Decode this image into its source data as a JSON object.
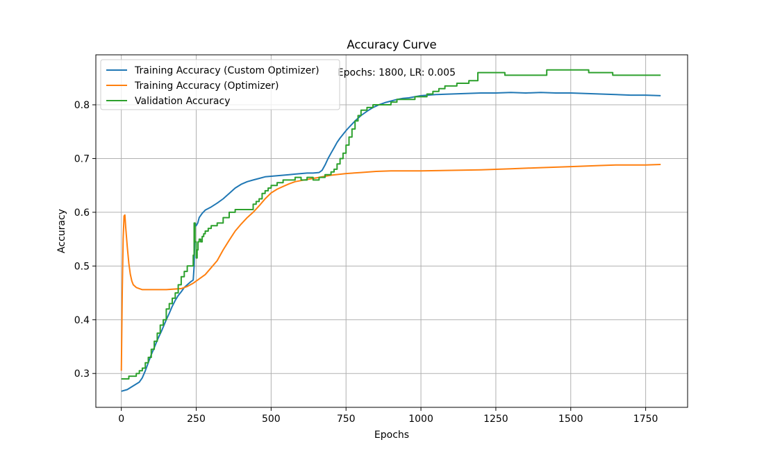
{
  "chart_data": {
    "type": "line",
    "title": "Accuracy Curve",
    "xlabel": "Epochs",
    "ylabel": "Accuracy",
    "annotation": "Epochs: 1800, LR: 0.005",
    "xlim": [
      -85,
      1890
    ],
    "ylim": [
      0.237,
      0.893
    ],
    "xticks": [
      0,
      250,
      500,
      750,
      1000,
      1250,
      1500,
      1750
    ],
    "yticks": [
      0.3,
      0.4,
      0.5,
      0.6,
      0.7,
      0.8
    ],
    "xtick_labels": [
      "0",
      "250",
      "500",
      "750",
      "1000",
      "1250",
      "1500",
      "1750"
    ],
    "ytick_labels": [
      "0.3",
      "0.4",
      "0.5",
      "0.6",
      "0.7",
      "0.8"
    ],
    "grid": true,
    "legend_position": "top-left",
    "series": [
      {
        "name": "Training Accuracy (Custom Optimizer)",
        "color": "#1f77b4",
        "style": "line",
        "x": [
          0,
          20,
          40,
          60,
          70,
          80,
          90,
          100,
          110,
          120,
          135,
          150,
          160,
          170,
          180,
          190,
          200,
          210,
          220,
          230,
          240,
          243,
          246,
          250,
          255,
          260,
          270,
          280,
          300,
          320,
          340,
          360,
          380,
          400,
          420,
          440,
          460,
          480,
          500,
          520,
          540,
          560,
          580,
          600,
          620,
          640,
          660,
          670,
          680,
          690,
          700,
          710,
          720,
          730,
          740,
          750,
          760,
          770,
          780,
          790,
          800,
          820,
          840,
          860,
          880,
          900,
          920,
          940,
          960,
          980,
          1000,
          1050,
          1100,
          1150,
          1200,
          1250,
          1300,
          1350,
          1400,
          1450,
          1500,
          1550,
          1600,
          1650,
          1700,
          1750,
          1800
        ],
        "y": [
          0.267,
          0.27,
          0.277,
          0.284,
          0.292,
          0.305,
          0.32,
          0.335,
          0.348,
          0.362,
          0.38,
          0.4,
          0.412,
          0.425,
          0.436,
          0.445,
          0.452,
          0.46,
          0.465,
          0.47,
          0.474,
          0.5,
          0.58,
          0.575,
          0.58,
          0.59,
          0.598,
          0.604,
          0.61,
          0.617,
          0.625,
          0.635,
          0.645,
          0.652,
          0.657,
          0.66,
          0.663,
          0.666,
          0.667,
          0.668,
          0.669,
          0.67,
          0.671,
          0.672,
          0.673,
          0.673,
          0.674,
          0.678,
          0.688,
          0.7,
          0.71,
          0.72,
          0.73,
          0.738,
          0.745,
          0.752,
          0.758,
          0.764,
          0.77,
          0.775,
          0.78,
          0.788,
          0.795,
          0.8,
          0.804,
          0.807,
          0.81,
          0.812,
          0.813,
          0.815,
          0.817,
          0.819,
          0.82,
          0.821,
          0.822,
          0.822,
          0.823,
          0.822,
          0.823,
          0.822,
          0.822,
          0.821,
          0.82,
          0.819,
          0.818,
          0.818,
          0.817
        ]
      },
      {
        "name": "Training Accuracy (Optimizer)",
        "color": "#ff7f0e",
        "style": "line",
        "x": [
          0,
          3,
          6,
          9,
          12,
          15,
          20,
          25,
          30,
          35,
          40,
          50,
          60,
          70,
          80,
          100,
          150,
          200,
          220,
          240,
          260,
          280,
          300,
          320,
          340,
          360,
          380,
          400,
          420,
          440,
          460,
          480,
          500,
          520,
          540,
          560,
          580,
          600,
          620,
          640,
          660,
          680,
          700,
          750,
          800,
          850,
          900,
          950,
          1000,
          1100,
          1200,
          1300,
          1400,
          1500,
          1600,
          1650,
          1700,
          1750,
          1800
        ],
        "y": [
          0.305,
          0.45,
          0.55,
          0.593,
          0.595,
          0.57,
          0.535,
          0.505,
          0.485,
          0.472,
          0.465,
          0.46,
          0.458,
          0.456,
          0.456,
          0.456,
          0.456,
          0.458,
          0.462,
          0.468,
          0.476,
          0.484,
          0.497,
          0.51,
          0.53,
          0.548,
          0.565,
          0.578,
          0.59,
          0.6,
          0.612,
          0.625,
          0.636,
          0.643,
          0.648,
          0.653,
          0.657,
          0.659,
          0.661,
          0.663,
          0.665,
          0.667,
          0.669,
          0.672,
          0.674,
          0.676,
          0.677,
          0.677,
          0.677,
          0.678,
          0.679,
          0.681,
          0.683,
          0.685,
          0.687,
          0.688,
          0.688,
          0.688,
          0.689
        ]
      },
      {
        "name": "Validation Accuracy",
        "color": "#2ca02c",
        "style": "step",
        "x": [
          0,
          15,
          25,
          35,
          50,
          60,
          70,
          80,
          90,
          100,
          110,
          120,
          130,
          140,
          150,
          160,
          170,
          180,
          190,
          200,
          210,
          220,
          230,
          240,
          243,
          246,
          250,
          253,
          256,
          260,
          265,
          270,
          275,
          280,
          290,
          300,
          320,
          340,
          360,
          380,
          400,
          420,
          440,
          450,
          460,
          470,
          480,
          490,
          500,
          520,
          540,
          560,
          580,
          600,
          620,
          640,
          660,
          680,
          700,
          710,
          720,
          730,
          740,
          750,
          760,
          770,
          780,
          790,
          800,
          820,
          840,
          860,
          880,
          900,
          920,
          940,
          960,
          980,
          1000,
          1020,
          1040,
          1060,
          1080,
          1100,
          1120,
          1140,
          1160,
          1180,
          1190,
          1200,
          1280,
          1420,
          1560,
          1640,
          1800
        ],
        "y": [
          0.29,
          0.29,
          0.295,
          0.295,
          0.3,
          0.305,
          0.31,
          0.32,
          0.33,
          0.345,
          0.36,
          0.375,
          0.39,
          0.4,
          0.42,
          0.43,
          0.44,
          0.45,
          0.465,
          0.48,
          0.49,
          0.5,
          0.5,
          0.52,
          0.58,
          0.545,
          0.515,
          0.53,
          0.545,
          0.55,
          0.545,
          0.555,
          0.56,
          0.565,
          0.57,
          0.575,
          0.58,
          0.59,
          0.6,
          0.605,
          0.605,
          0.605,
          0.615,
          0.62,
          0.625,
          0.635,
          0.64,
          0.645,
          0.65,
          0.655,
          0.66,
          0.66,
          0.665,
          0.66,
          0.665,
          0.66,
          0.665,
          0.67,
          0.675,
          0.68,
          0.69,
          0.7,
          0.71,
          0.725,
          0.74,
          0.755,
          0.77,
          0.78,
          0.79,
          0.795,
          0.8,
          0.8,
          0.8,
          0.805,
          0.81,
          0.81,
          0.81,
          0.815,
          0.815,
          0.82,
          0.825,
          0.83,
          0.835,
          0.835,
          0.84,
          0.84,
          0.845,
          0.845,
          0.86,
          0.86,
          0.855,
          0.865,
          0.86,
          0.855,
          0.855
        ]
      }
    ]
  }
}
